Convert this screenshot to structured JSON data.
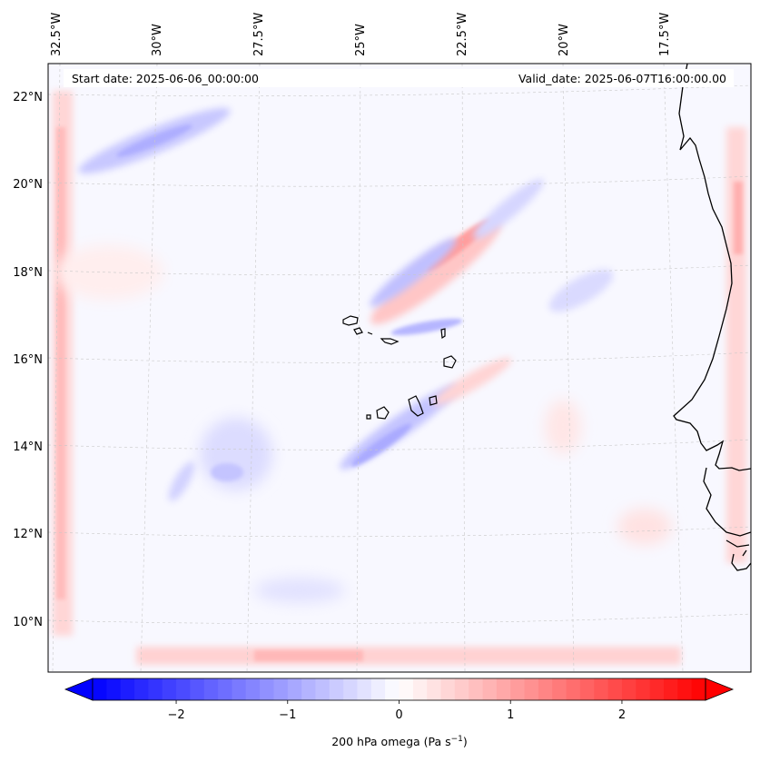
{
  "map": {
    "start_date_label": "Start date: 2025-06-06_00:00:00",
    "valid_date_label": "Valid_date: 2025-06-07T16:00:00.00",
    "longitude_labels": [
      "32.5°W",
      "30°W",
      "27.5°W",
      "25°W",
      "22.5°W",
      "20°W",
      "17.5°W"
    ],
    "latitude_labels": [
      "22°N",
      "20°N",
      "18°N",
      "16°N",
      "14°N",
      "12°N",
      "10°N"
    ],
    "extent": {
      "lon_min": -33.0,
      "lon_max": -15.5,
      "lat_min": 9.0,
      "lat_max": 22.8
    }
  },
  "colorbar": {
    "label": "200 hPa omega (Pa s",
    "label_exponent": "−1",
    "label_suffix": ")",
    "ticks": [
      "−2",
      "−1",
      "0",
      "1",
      "2"
    ],
    "tick_values": [
      -2,
      -1,
      0,
      1,
      2
    ],
    "range": [
      -2.75,
      2.75
    ],
    "min_color": "#0000ff",
    "mid_color": "#ffffff",
    "max_color": "#ff0000",
    "extend": "both"
  },
  "colors": {
    "coastline": "#000000",
    "gridline": "#c8c8c8",
    "field_background": "#f8f8ff"
  }
}
